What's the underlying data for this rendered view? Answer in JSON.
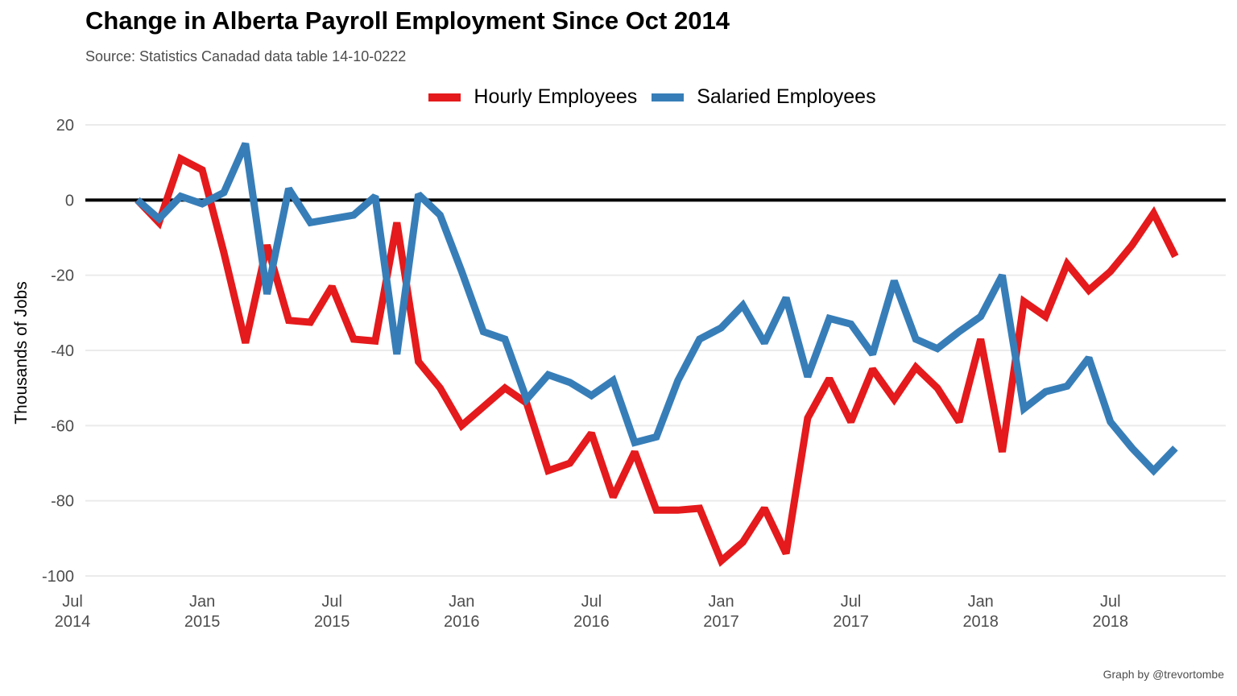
{
  "title": "Change in Alberta Payroll Employment Since Oct 2014",
  "subtitle": "Source: Statistics Canadad data table 14-10-0222",
  "caption": "Graph by @trevortombe",
  "colors": {
    "hourly": "#e41a1c",
    "salaried": "#377eb8",
    "zero_line": "#000000",
    "grid": "#ebebeb"
  },
  "chart_data": {
    "type": "line",
    "title": "Change in Alberta Payroll Employment Since Oct 2014",
    "subtitle": "Source: Statistics Canadad data table 14-10-0222",
    "xlabel": "",
    "ylabel": "Thousands of Jobs",
    "ylim": [
      -100,
      20
    ],
    "xlim": [
      "2014-07",
      "2018-12"
    ],
    "grid": true,
    "legend_position": "top",
    "y_ticks": [
      20,
      0,
      -20,
      -40,
      -60,
      -80,
      -100
    ],
    "y_tick_labels": [
      "20",
      "0",
      "-20",
      "-40",
      "-60",
      "-80",
      "-100"
    ],
    "x_ticks": [
      {
        "date": "2014-07",
        "line1": "Jul",
        "line2": "2014"
      },
      {
        "date": "2015-01",
        "line1": "Jan",
        "line2": "2015"
      },
      {
        "date": "2015-07",
        "line1": "Jul",
        "line2": "2015"
      },
      {
        "date": "2016-01",
        "line1": "Jan",
        "line2": "2016"
      },
      {
        "date": "2016-07",
        "line1": "Jul",
        "line2": "2016"
      },
      {
        "date": "2017-01",
        "line1": "Jan",
        "line2": "2017"
      },
      {
        "date": "2017-07",
        "line1": "Jul",
        "line2": "2017"
      },
      {
        "date": "2018-01",
        "line1": "Jan",
        "line2": "2018"
      },
      {
        "date": "2018-07",
        "line1": "Jul",
        "line2": "2018"
      }
    ],
    "x": [
      "2014-10",
      "2014-11",
      "2014-12",
      "2015-01",
      "2015-02",
      "2015-03",
      "2015-04",
      "2015-05",
      "2015-06",
      "2015-07",
      "2015-08",
      "2015-09",
      "2015-10",
      "2015-11",
      "2015-12",
      "2016-01",
      "2016-02",
      "2016-03",
      "2016-04",
      "2016-05",
      "2016-06",
      "2016-07",
      "2016-08",
      "2016-09",
      "2016-10",
      "2016-11",
      "2016-12",
      "2017-01",
      "2017-02",
      "2017-03",
      "2017-04",
      "2017-05",
      "2017-06",
      "2017-07",
      "2017-08",
      "2017-09",
      "2017-10",
      "2017-11",
      "2017-12",
      "2018-01",
      "2018-02",
      "2018-03",
      "2018-04",
      "2018-05",
      "2018-06",
      "2018-07",
      "2018-08",
      "2018-09",
      "2018-10"
    ],
    "series": [
      {
        "name": "Hourly Employees",
        "color": "#e41a1c",
        "values": [
          0,
          -6,
          11,
          8,
          -14,
          -38,
          -12,
          -32,
          -32.5,
          -23,
          -37,
          -37.5,
          -6,
          -43,
          -50,
          -60,
          -55,
          -50,
          -54,
          -72,
          -70,
          -62,
          -79,
          -67,
          -82.5,
          -82.5,
          -82,
          -96,
          -91,
          -82,
          -94,
          -58,
          -47.5,
          -59,
          -45,
          -53,
          -44.5,
          -50,
          -59,
          -37,
          -67,
          -27,
          -31,
          -17,
          -24,
          -19,
          -12,
          -3.5,
          -15
        ]
      },
      {
        "name": "Salaried Employees",
        "color": "#377eb8",
        "values": [
          0,
          -5,
          1,
          -1,
          2,
          15,
          -25,
          3,
          -6,
          -5,
          -4,
          1,
          -41,
          1.5,
          -4,
          -19,
          -35,
          -37,
          -53,
          -46.5,
          -48.5,
          -52,
          -48,
          -64.5,
          -63,
          -48,
          -37,
          -34,
          -28,
          -38,
          -26,
          -47,
          -31.5,
          -33,
          -41,
          -21.5,
          -37,
          -39.5,
          -35,
          -31,
          -20,
          -55.5,
          -51,
          -49.5,
          -42,
          -59,
          -66,
          -72,
          -66
        ]
      }
    ]
  }
}
